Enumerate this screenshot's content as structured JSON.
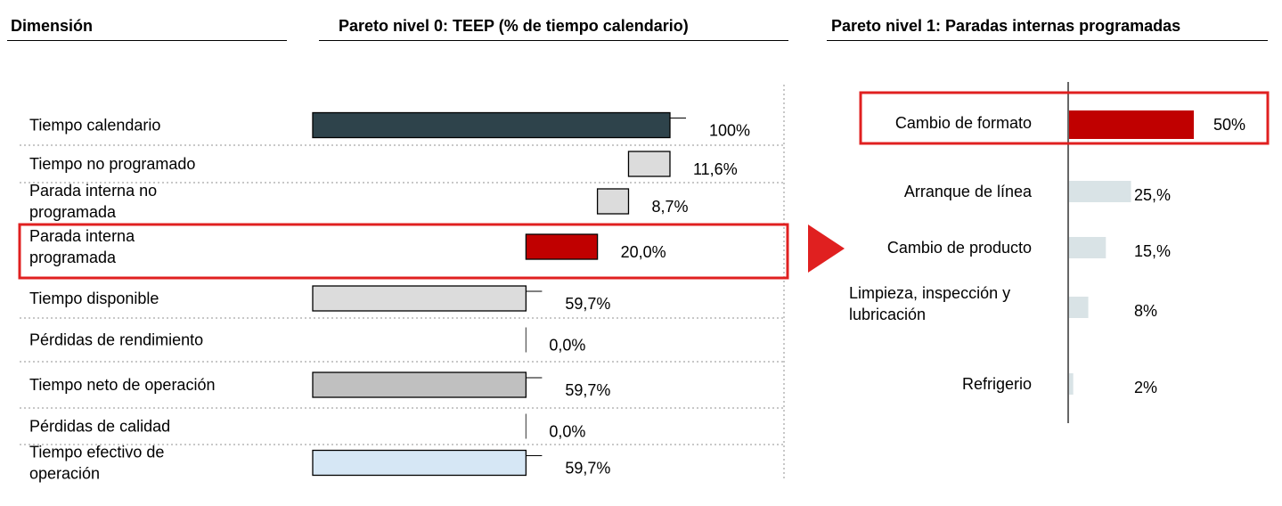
{
  "headers": {
    "dimension": "Dimensión",
    "level0": "Pareto nivel 0: TEEP (% de tiempo calendario)",
    "level1": "Pareto nivel 1: Paradas internas programadas"
  },
  "colors": {
    "dark": "#2e434b",
    "light_grey": "#dcdcdc",
    "mid_grey": "#c0c0c0",
    "highlight_red": "#c00000",
    "light_blue": "#d6e7f5",
    "pale_blue": "#d9e3e6",
    "frame_red": "#e02020"
  },
  "chart_data": [
    {
      "type": "bar",
      "subtype": "waterfall",
      "title": "Pareto nivel 0: TEEP (% de tiempo calendario)",
      "categories": [
        "Tiempo calendario",
        "Tiempo no programado",
        "Parada interna no programada",
        "Parada interna programada",
        "Tiempo disponible",
        "Pérdidas de rendimiento",
        "Tiempo neto de operación",
        "Pérdidas de calidad",
        "Tiempo efectivo de operación"
      ],
      "category_lines": [
        [
          "Tiempo calendario"
        ],
        [
          "Tiempo no programado"
        ],
        [
          "Parada interna no",
          "programada"
        ],
        [
          "Parada interna",
          "programada"
        ],
        [
          "Tiempo disponible"
        ],
        [
          "Pérdidas de rendimiento"
        ],
        [
          "Tiempo neto de operación"
        ],
        [
          "Pérdidas de calidad"
        ],
        [
          "Tiempo efectivo de",
          "operación"
        ]
      ],
      "values": [
        100,
        11.6,
        8.7,
        20.0,
        59.7,
        0.0,
        59.7,
        0.0,
        59.7
      ],
      "starts": [
        0,
        88.4,
        79.7,
        59.7,
        0,
        59.7,
        0,
        59.7,
        0
      ],
      "labels": [
        "100%",
        "11,6%",
        "8,7%",
        "20,0%",
        "59,7%",
        "0,0%",
        "59,7%",
        "0,0%",
        "59,7%"
      ],
      "fills": [
        "#2e434b",
        "#dcdcdc",
        "#dcdcdc",
        "#c00000",
        "#dcdcdc",
        "#dcdcdc",
        "#c0c0c0",
        "#dcdcdc",
        "#d6e7f5"
      ],
      "highlighted_index": 3,
      "xlim": [
        0,
        100
      ]
    },
    {
      "type": "bar",
      "orientation": "horizontal",
      "title": "Pareto nivel 1: Paradas internas programadas",
      "categories": [
        "Cambio de formato",
        "Arranque de línea",
        "Cambio de producto",
        "Limpieza, inspección y lubricación",
        "Refrigerio"
      ],
      "category_lines": [
        [
          "Cambio de formato"
        ],
        [
          "Arranque de línea"
        ],
        [
          "Cambio de producto"
        ],
        [
          "Limpieza, inspección y",
          "lubricación"
        ],
        [
          "Refrigerio"
        ]
      ],
      "values": [
        50,
        25,
        15,
        8,
        2
      ],
      "labels": [
        "50%",
        "25,%",
        "15,%",
        "8%",
        "2%"
      ],
      "fills": [
        "#c00000",
        "#d9e3e6",
        "#d9e3e6",
        "#d9e3e6",
        "#d9e3e6"
      ],
      "highlighted_index": 0,
      "xlim": [
        0,
        100
      ]
    }
  ]
}
